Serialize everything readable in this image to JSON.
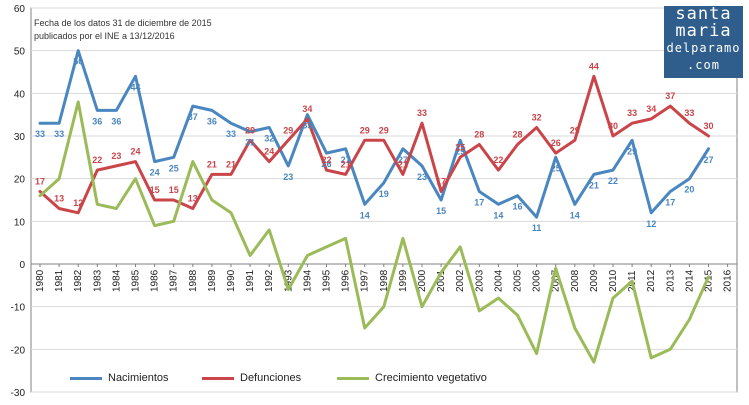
{
  "note": {
    "line1": "Fecha de los datos 31 de diciembre de 2015",
    "line2": "publicados por el INE a 13/12/2016"
  },
  "logo": {
    "line1": "santa",
    "line2": "maria",
    "line3": "delparamo",
    "line4": ".com"
  },
  "colors": {
    "nacimientos": "#4a86c0",
    "defunciones": "#c9454a",
    "crecimiento": "#9bbb59",
    "grid": "#d9d9d9",
    "axis": "#808080"
  },
  "chart_data": {
    "type": "line",
    "title": "",
    "xlabel": "",
    "ylabel": "",
    "ylim": [
      -30,
      60
    ],
    "yticks": [
      -30,
      -20,
      -10,
      0,
      10,
      20,
      30,
      40,
      50,
      60
    ],
    "grid": true,
    "legend_position": "bottom",
    "x": [
      1980,
      1981,
      1982,
      1983,
      1984,
      1985,
      1986,
      1987,
      1988,
      1989,
      1990,
      1991,
      1992,
      1993,
      1994,
      1995,
      1996,
      1997,
      1998,
      1999,
      2000,
      2001,
      2002,
      2003,
      2004,
      2005,
      2006,
      2007,
      2008,
      2009,
      2010,
      2011,
      2012,
      2013,
      2014,
      2015,
      2016
    ],
    "series": [
      {
        "name": "Nacimientos",
        "color": "#4a86c0",
        "values": [
          33,
          33,
          50,
          36,
          36,
          44,
          24,
          25,
          37,
          36,
          33,
          31,
          32,
          23,
          35,
          26,
          27,
          14,
          19,
          27,
          23,
          15,
          29,
          17,
          14,
          16,
          11,
          25,
          14,
          21,
          22,
          29,
          12,
          17,
          20,
          27,
          null
        ],
        "labels": [
          "33",
          "33",
          "50",
          "36",
          "36",
          "44",
          "24",
          "25",
          "37",
          "36",
          "33",
          "31",
          "32",
          "23",
          "35",
          "26",
          "27",
          "14",
          "19",
          "27",
          "23",
          "15",
          "29",
          "17",
          "14",
          "16",
          "11",
          "25",
          "14",
          "21",
          "22",
          "29",
          "12",
          "17",
          "20",
          "27",
          ""
        ]
      },
      {
        "name": "Defunciones",
        "color": "#c9454a",
        "values": [
          17,
          13,
          12,
          22,
          23,
          24,
          15,
          15,
          13,
          21,
          21,
          29,
          24,
          29,
          34,
          22,
          21,
          29,
          29,
          21,
          33,
          17,
          25,
          28,
          22,
          28,
          32,
          26,
          29,
          44,
          30,
          33,
          34,
          37,
          33,
          30,
          null
        ],
        "labels": [
          "17",
          "13",
          "12",
          "22",
          "23",
          "24",
          "15",
          "15",
          "13",
          "21",
          "21",
          "29",
          "24",
          "29",
          "34",
          "22",
          "21",
          "29",
          "29",
          "21",
          "33",
          "17",
          "25",
          "28",
          "22",
          "28",
          "32",
          "26",
          "29",
          "44",
          "30",
          "33",
          "34",
          "37",
          "33",
          "30",
          ""
        ]
      },
      {
        "name": "Crecimiento vegetativo",
        "color": "#9bbb59",
        "values": [
          16,
          20,
          38,
          14,
          13,
          20,
          9,
          10,
          24,
          15,
          12,
          2,
          8,
          -6,
          2,
          4,
          6,
          -15,
          -10,
          6,
          -10,
          -2,
          4,
          -11,
          -8,
          -12,
          -21,
          -1,
          -15,
          -23,
          -8,
          -4,
          -22,
          -20,
          -13,
          -3,
          null
        ]
      }
    ]
  },
  "legend": [
    {
      "label": "Nacimientos",
      "color": "#4a86c0"
    },
    {
      "label": "Defunciones",
      "color": "#c9454a"
    },
    {
      "label": "Crecimiento vegetativo",
      "color": "#9bbb59"
    }
  ]
}
